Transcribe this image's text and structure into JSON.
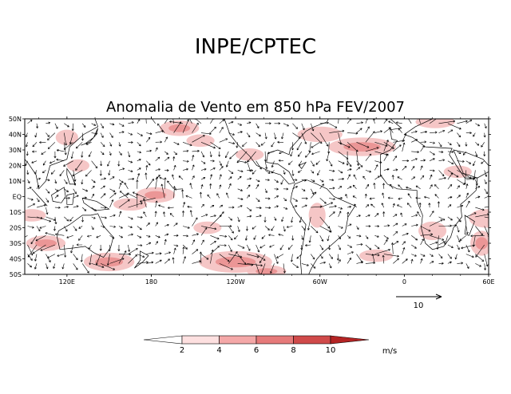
{
  "header": {
    "title": "INPE/CPTEC",
    "subtitle": "Anomalia de Vento em 850 hPa FEV/2007"
  },
  "map": {
    "lat_labels": [
      "50N",
      "40N",
      "30N",
      "20N",
      "10N",
      "EQ",
      "10S",
      "20S",
      "30S",
      "40S",
      "50S"
    ],
    "lon_labels": [
      "120E",
      "180",
      "120W",
      "60W",
      "0",
      "60E"
    ],
    "lat_range": [
      -50,
      50
    ],
    "lon_range": [
      90,
      420
    ],
    "fill_color": "#f4c0c0",
    "fill_color_strong": "#e88a8a",
    "vector_color": "#000000"
  },
  "reference_vector": {
    "label": "10"
  },
  "colorbar": {
    "labels": [
      "2",
      "4",
      "6",
      "8",
      "10"
    ],
    "unit": "m/s",
    "colors": [
      "#ffffff",
      "#fde0e0",
      "#f4a8a8",
      "#e67a7a",
      "#d04a4a",
      "#b42424"
    ]
  }
}
